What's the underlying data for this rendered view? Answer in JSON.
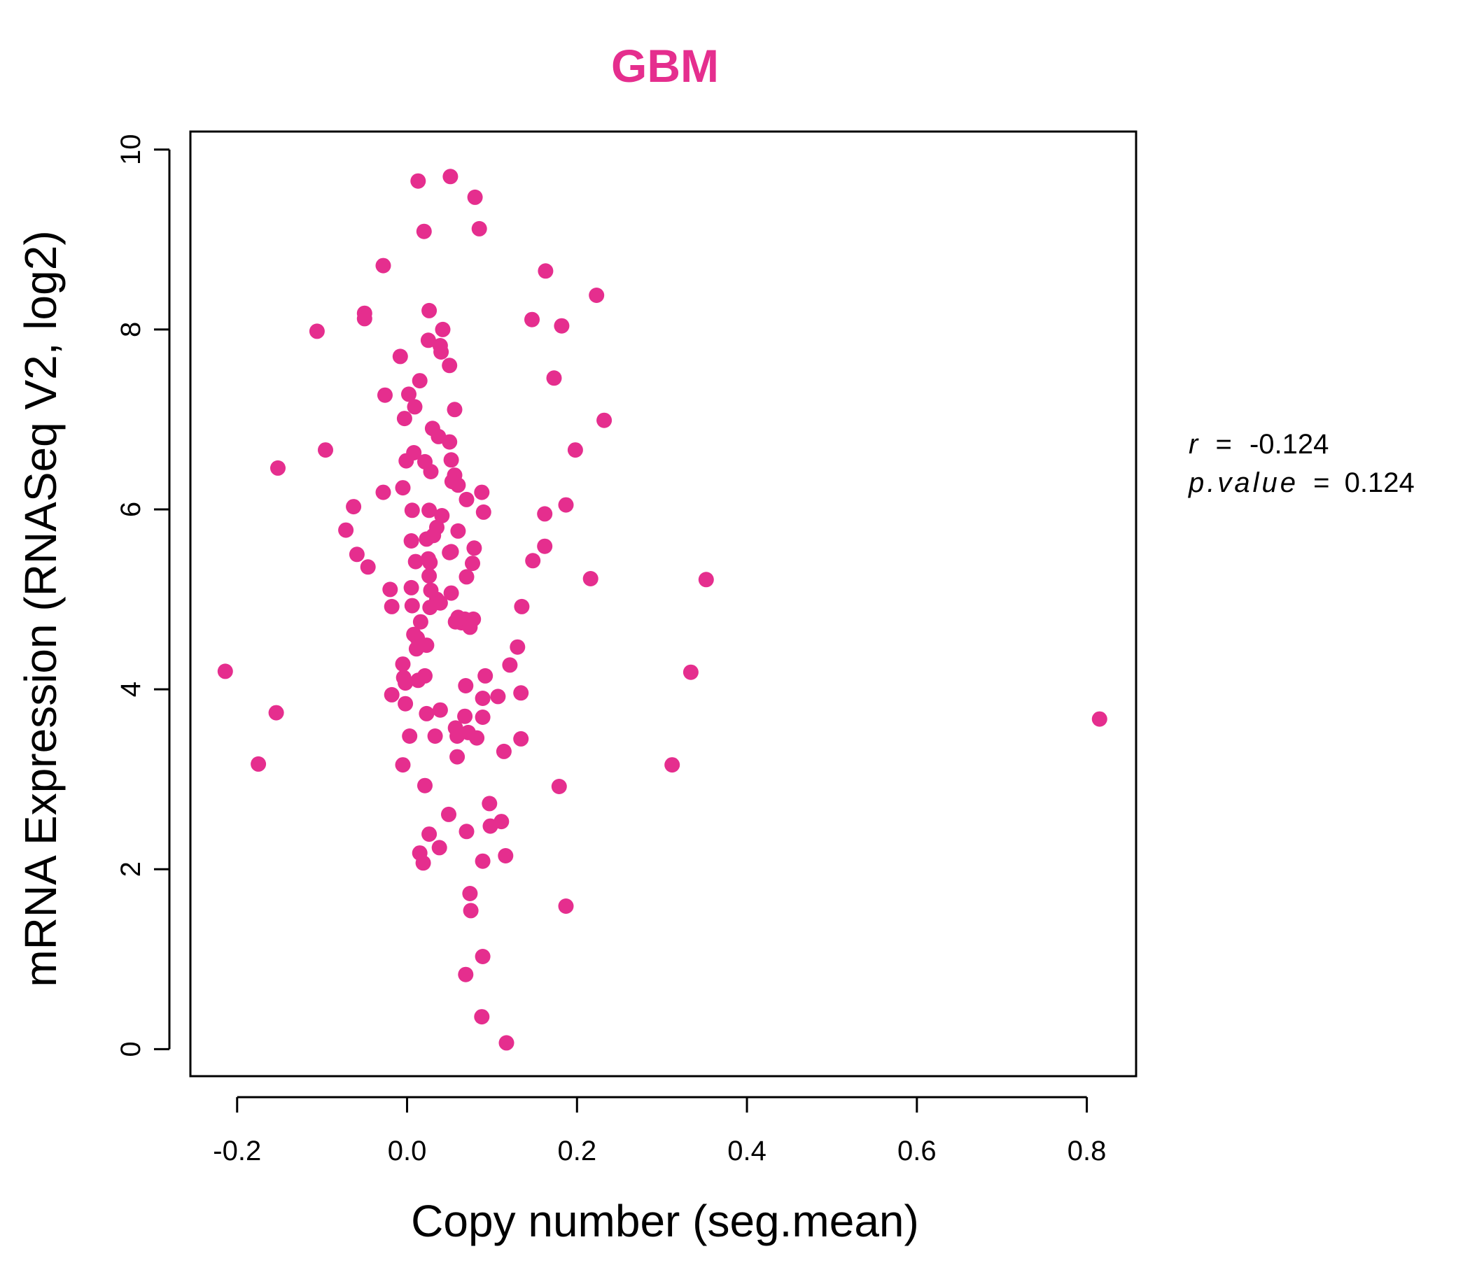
{
  "colors": {
    "accent": "#e52e8e",
    "axis": "#000000",
    "background": "#ffffff"
  },
  "chart_data": {
    "type": "scatter",
    "title": "GBM",
    "xlabel": "Copy number (seg.mean)",
    "ylabel": "mRNA Expression (RNASeq V2, log2)",
    "xlim": [
      -0.255,
      0.858
    ],
    "ylim": [
      -0.3,
      10.2
    ],
    "xticks": [
      -0.2,
      0.0,
      0.2,
      0.4,
      0.6,
      0.8
    ],
    "xtick_labels": [
      "-0.2",
      "0.0",
      "0.2",
      "0.4",
      "0.6",
      "0.8"
    ],
    "yticks": [
      0,
      2,
      4,
      6,
      8,
      10
    ],
    "ytick_labels": [
      "0",
      "2",
      "4",
      "6",
      "8",
      "10"
    ],
    "grid": false,
    "stats": {
      "r_label": "r",
      "r_value": "-0.124",
      "p_label": "p.value",
      "p_value": "0.124",
      "equals": "="
    },
    "points": [
      [
        0.013,
        9.65
      ],
      [
        0.051,
        9.7
      ],
      [
        0.08,
        9.47
      ],
      [
        0.02,
        9.09
      ],
      [
        0.085,
        9.12
      ],
      [
        -0.028,
        8.71
      ],
      [
        0.163,
        8.65
      ],
      [
        0.223,
        8.38
      ],
      [
        -0.05,
        8.18
      ],
      [
        -0.05,
        8.12
      ],
      [
        0.026,
        8.21
      ],
      [
        0.147,
        8.11
      ],
      [
        0.182,
        8.04
      ],
      [
        -0.106,
        7.98
      ],
      [
        0.042,
        8.0
      ],
      [
        0.025,
        7.88
      ],
      [
        0.039,
        7.82
      ],
      [
        0.04,
        7.75
      ],
      [
        -0.008,
        7.7
      ],
      [
        0.05,
        7.6
      ],
      [
        0.173,
        7.46
      ],
      [
        0.015,
        7.43
      ],
      [
        -0.026,
        7.27
      ],
      [
        0.002,
        7.28
      ],
      [
        0.009,
        7.14
      ],
      [
        0.056,
        7.11
      ],
      [
        -0.003,
        7.01
      ],
      [
        0.232,
        6.99
      ],
      [
        0.03,
        6.9
      ],
      [
        0.037,
        6.81
      ],
      [
        0.05,
        6.75
      ],
      [
        -0.096,
        6.66
      ],
      [
        0.198,
        6.66
      ],
      [
        0.008,
        6.63
      ],
      [
        0.021,
        6.53
      ],
      [
        0.052,
        6.55
      ],
      [
        -0.001,
        6.54
      ],
      [
        -0.152,
        6.46
      ],
      [
        0.028,
        6.42
      ],
      [
        0.056,
        6.38
      ],
      [
        0.06,
        6.27
      ],
      [
        0.053,
        6.31
      ],
      [
        -0.005,
        6.24
      ],
      [
        -0.028,
        6.19
      ],
      [
        0.088,
        6.19
      ],
      [
        0.07,
        6.11
      ],
      [
        -0.063,
        6.03
      ],
      [
        0.187,
        6.05
      ],
      [
        0.006,
        5.99
      ],
      [
        0.026,
        5.99
      ],
      [
        0.09,
        5.97
      ],
      [
        0.162,
        5.95
      ],
      [
        0.041,
        5.93
      ],
      [
        0.035,
        5.8
      ],
      [
        -0.072,
        5.77
      ],
      [
        0.06,
        5.76
      ],
      [
        0.031,
        5.71
      ],
      [
        0.005,
        5.65
      ],
      [
        0.023,
        5.67
      ],
      [
        0.162,
        5.59
      ],
      [
        0.079,
        5.57
      ],
      [
        0.052,
        5.53
      ],
      [
        -0.059,
        5.5
      ],
      [
        0.05,
        5.52
      ],
      [
        0.025,
        5.45
      ],
      [
        0.01,
        5.42
      ],
      [
        0.148,
        5.43
      ],
      [
        0.027,
        5.41
      ],
      [
        0.077,
        5.4
      ],
      [
        -0.046,
        5.36
      ],
      [
        0.216,
        5.23
      ],
      [
        0.352,
        5.22
      ],
      [
        0.07,
        5.25
      ],
      [
        0.026,
        5.26
      ],
      [
        0.005,
        5.13
      ],
      [
        -0.02,
        5.11
      ],
      [
        0.028,
        5.1
      ],
      [
        0.052,
        5.07
      ],
      [
        0.035,
        5.0
      ],
      [
        0.006,
        4.93
      ],
      [
        -0.018,
        4.92
      ],
      [
        0.039,
        4.96
      ],
      [
        0.027,
        4.91
      ],
      [
        0.135,
        4.92
      ],
      [
        0.06,
        4.8
      ],
      [
        0.068,
        4.78
      ],
      [
        0.078,
        4.78
      ],
      [
        0.064,
        4.74
      ],
      [
        0.057,
        4.75
      ],
      [
        0.016,
        4.75
      ],
      [
        0.074,
        4.69
      ],
      [
        0.008,
        4.61
      ],
      [
        0.012,
        4.57
      ],
      [
        0.023,
        4.49
      ],
      [
        0.011,
        4.45
      ],
      [
        0.13,
        4.47
      ],
      [
        -0.005,
        4.28
      ],
      [
        0.121,
        4.27
      ],
      [
        0.334,
        4.19
      ],
      [
        -0.214,
        4.2
      ],
      [
        0.092,
        4.15
      ],
      [
        0.021,
        4.15
      ],
      [
        0.013,
        4.1
      ],
      [
        -0.004,
        4.13
      ],
      [
        -0.002,
        4.07
      ],
      [
        0.069,
        4.04
      ],
      [
        -0.018,
        3.94
      ],
      [
        0.107,
        3.92
      ],
      [
        0.134,
        3.96
      ],
      [
        0.089,
        3.9
      ],
      [
        -0.002,
        3.84
      ],
      [
        0.039,
        3.77
      ],
      [
        0.023,
        3.73
      ],
      [
        0.068,
        3.7
      ],
      [
        0.089,
        3.69
      ],
      [
        -0.154,
        3.74
      ],
      [
        0.815,
        3.67
      ],
      [
        0.057,
        3.57
      ],
      [
        0.072,
        3.52
      ],
      [
        0.003,
        3.48
      ],
      [
        0.033,
        3.48
      ],
      [
        0.059,
        3.48
      ],
      [
        0.082,
        3.46
      ],
      [
        0.134,
        3.45
      ],
      [
        0.114,
        3.31
      ],
      [
        0.059,
        3.25
      ],
      [
        -0.175,
        3.17
      ],
      [
        -0.005,
        3.16
      ],
      [
        0.312,
        3.16
      ],
      [
        0.021,
        2.93
      ],
      [
        0.179,
        2.92
      ],
      [
        0.097,
        2.73
      ],
      [
        0.049,
        2.61
      ],
      [
        0.111,
        2.53
      ],
      [
        0.098,
        2.48
      ],
      [
        0.07,
        2.42
      ],
      [
        0.026,
        2.39
      ],
      [
        0.038,
        2.24
      ],
      [
        0.015,
        2.18
      ],
      [
        0.116,
        2.15
      ],
      [
        0.089,
        2.09
      ],
      [
        0.019,
        2.07
      ],
      [
        0.074,
        1.73
      ],
      [
        0.187,
        1.59
      ],
      [
        0.075,
        1.54
      ],
      [
        0.089,
        1.03
      ],
      [
        0.069,
        0.83
      ],
      [
        0.088,
        0.36
      ],
      [
        0.117,
        0.07
      ]
    ]
  }
}
